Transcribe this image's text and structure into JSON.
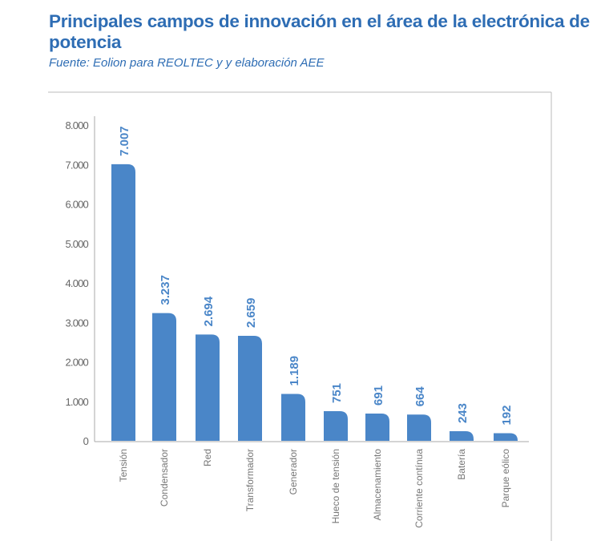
{
  "chart_data": {
    "type": "bar",
    "title": "Principales campos de innovación en el área de la electrónica de potencia",
    "subtitle": "Fuente: Eolion para REOLTEC y y elaboración AEE",
    "xlabel": "",
    "ylabel": "",
    "ylim": [
      0,
      8000
    ],
    "yticks": [
      "0",
      "1.000",
      "2.000",
      "3.000",
      "4.000",
      "5.000",
      "6.000",
      "7.000",
      "8.000"
    ],
    "categories": [
      "Tensión",
      "Condensador",
      "Red",
      "Transformador",
      "Generador",
      "Hueco de tensión",
      "Almacenamiento",
      "Corriente contínua",
      "Batería",
      "Parque eólico"
    ],
    "values": [
      7007,
      3237,
      2694,
      2659,
      1189,
      751,
      691,
      664,
      243,
      192
    ],
    "value_labels": [
      "7.007",
      "3.237",
      "2.694",
      "2.659",
      "1.189",
      "751",
      "691",
      "664",
      "243",
      "192"
    ],
    "bar_color": "#4a86c8",
    "grid": false,
    "legend": "none"
  }
}
